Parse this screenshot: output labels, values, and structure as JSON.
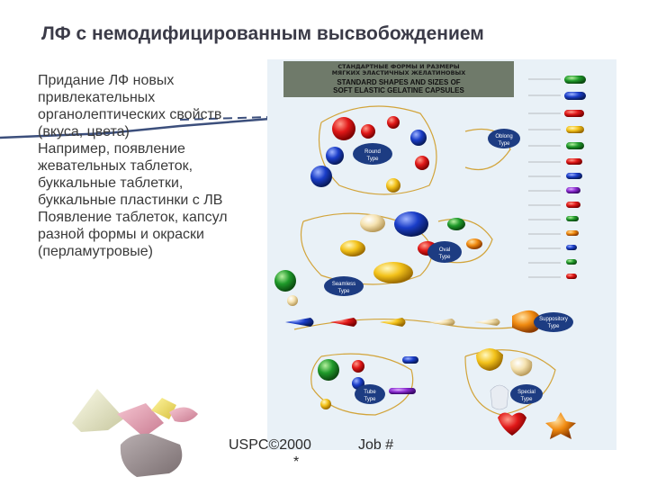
{
  "slide": {
    "title": "ЛФ с немодифицированным высвобождением",
    "paragraphs": [
      "Придание ЛФ новых привлекательных органолептических свойств (вкуса, цвета)",
      "Например, появление жевательных таблеток, буккальные таблетки, буккальные пластинки с ЛВ",
      "Появление таблеток, капсул разной формы и окраски (перламутровые)"
    ],
    "footer_left": "USPC©2000",
    "footer_star": "*",
    "footer_right": "Job #"
  },
  "poster": {
    "header_ru_line1": "СТАНДАРТНЫЕ ФОРМЫ И РАЗМЕРЫ",
    "header_ru_line2": "МЯГКИХ ЭЛАСТИЧНЫХ ЖЕЛАТИНОВЫХ",
    "header_en_line1": "STANDARD SHAPES AND SIZES OF",
    "header_en_line2": "SOFT ELASTIC GELATINE CAPSULES",
    "labels": {
      "round": "Round Type",
      "oblong": "Oblong Type",
      "oval": "Oval Type",
      "seamless": "Seamless Type",
      "suppository": "Suppository Type",
      "tube": "Tube Type",
      "special": "Special Type"
    }
  },
  "colors": {
    "title": "#3b3b48",
    "accent_line": "#3c4f7c",
    "poster_bg": "#e9f1f7",
    "poster_header": "#6f7a6a"
  }
}
